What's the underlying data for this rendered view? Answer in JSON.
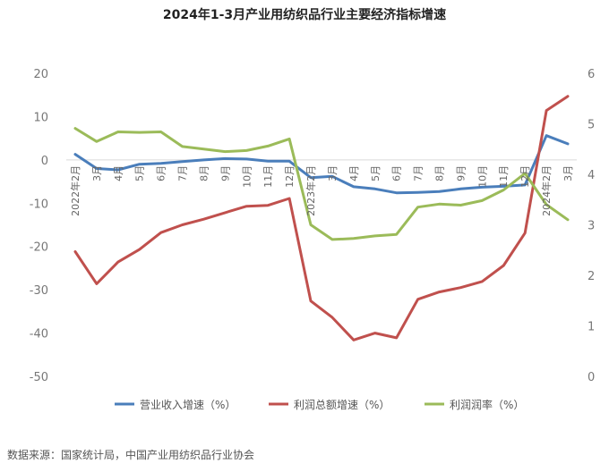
{
  "chart_data": {
    "type": "line",
    "title": "2024年1-3月产业用纺织品行业主要经济指标增速",
    "categories": [
      "2022年2月",
      "3月",
      "4月",
      "5月",
      "6月",
      "7月",
      "8月",
      "9月",
      "10月",
      "11月",
      "12月",
      "2023年2月",
      "3月",
      "4月",
      "5月",
      "6月",
      "7月",
      "8月",
      "9月",
      "10月",
      "11月",
      "12月",
      "2024年2月",
      "3月"
    ],
    "series": [
      {
        "name": "营业收入增速（%）",
        "axis": "left",
        "color": "#4a7ebb",
        "values": [
          1.3,
          -2.0,
          -2.3,
          -1.0,
          -0.8,
          -0.4,
          0.0,
          0.3,
          0.2,
          -0.3,
          -0.3,
          -4.1,
          -3.8,
          -6.2,
          -6.7,
          -7.6,
          -7.5,
          -7.3,
          -6.7,
          -6.3,
          -6.1,
          -5.8,
          5.6,
          3.7
        ]
      },
      {
        "name": "利润总额增速（%）",
        "axis": "left",
        "color": "#c0504d",
        "values": [
          -21.2,
          -28.6,
          -23.6,
          -20.7,
          -16.8,
          -15.0,
          -13.7,
          -12.2,
          -10.7,
          -10.5,
          -8.9,
          -32.6,
          -36.4,
          -41.6,
          -40.0,
          -41.1,
          -32.2,
          -30.5,
          -29.5,
          -28.1,
          -24.4,
          -16.9,
          11.4,
          14.7
        ]
      },
      {
        "name": "利润润率（%）",
        "axis": "right",
        "color": "#9bbb59",
        "values": [
          4.91,
          4.65,
          4.84,
          4.83,
          4.84,
          4.55,
          4.5,
          4.45,
          4.47,
          4.56,
          4.7,
          3.0,
          2.71,
          2.73,
          2.78,
          2.81,
          3.35,
          3.41,
          3.39,
          3.48,
          3.69,
          4.02,
          3.4,
          3.1
        ]
      }
    ],
    "left_axis": {
      "min": -50,
      "max": 20,
      "ticks": [
        "20",
        "10",
        "0",
        "-10",
        "-20",
        "-30",
        "-40",
        "-50"
      ]
    },
    "right_axis": {
      "min": 0,
      "max": 6,
      "ticks": [
        "6",
        "5",
        "4",
        "3",
        "2",
        "1",
        "0"
      ]
    },
    "legend_position": "bottom",
    "grid": false
  },
  "legend": [
    {
      "label": "营业收入增速（%）",
      "color": "#4a7ebb"
    },
    {
      "label": "利润总额增速（%）",
      "color": "#c0504d"
    },
    {
      "label": "利润润率（%）",
      "color": "#9bbb59"
    }
  ],
  "source_note": "数据来源：国家统计局，中国产业用纺织品行业协会"
}
